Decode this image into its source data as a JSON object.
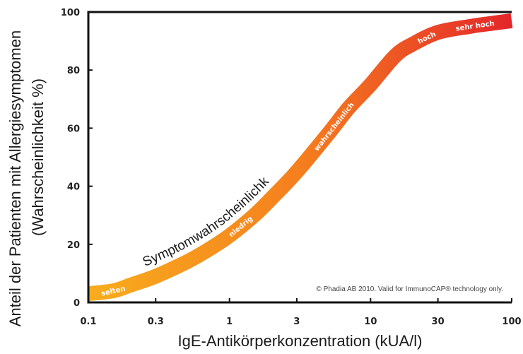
{
  "chart_data": {
    "type": "line",
    "xscale": "log",
    "xlabel": "IgE-Antikörperkonzentration (kUA/l)",
    "ylabel_line1": "Anteil der Patienten mit Allergiesymptomen",
    "ylabel_line2": "(Wahrscheinlichkeit %)",
    "xlim": [
      0.1,
      100
    ],
    "ylim": [
      0,
      100
    ],
    "x_ticks": [
      0.1,
      0.3,
      1,
      3,
      10,
      30,
      100
    ],
    "x_tick_labels": [
      "0.1",
      "0.3",
      "1",
      "3",
      "10",
      "30",
      "100"
    ],
    "y_ticks": [
      0,
      20,
      40,
      60,
      80,
      100
    ],
    "y_tick_labels": [
      "0",
      "20",
      "40",
      "60",
      "80",
      "100"
    ],
    "grid": false,
    "series": [
      {
        "x": [
          0.1,
          0.15,
          0.2,
          0.3,
          0.5,
          0.7,
          1,
          1.5,
          2,
          3,
          5,
          7,
          10,
          15,
          20,
          30,
          50,
          70,
          100
        ],
        "y": [
          3,
          4,
          6,
          9,
          14,
          18,
          23,
          30,
          36,
          45,
          58,
          67,
          75,
          85,
          89,
          93,
          95,
          96,
          97
        ]
      }
    ],
    "curve_label": "Symptomwahrscheinlichkeit",
    "band_labels": [
      {
        "text": "selten",
        "x": 0.15
      },
      {
        "text": "niedrig",
        "x": 1.2
      },
      {
        "text": "wahrscheinlich",
        "x": 5.5
      },
      {
        "text": "hoch",
        "x": 25
      },
      {
        "text": "sehr hoch",
        "x": 55
      }
    ],
    "gradient_colors": [
      "#f8ad1d",
      "#f57f1e",
      "#e4262a"
    ],
    "copyright": "© Phadia AB 2010. Valid for ImmunoCAP® technology only."
  }
}
